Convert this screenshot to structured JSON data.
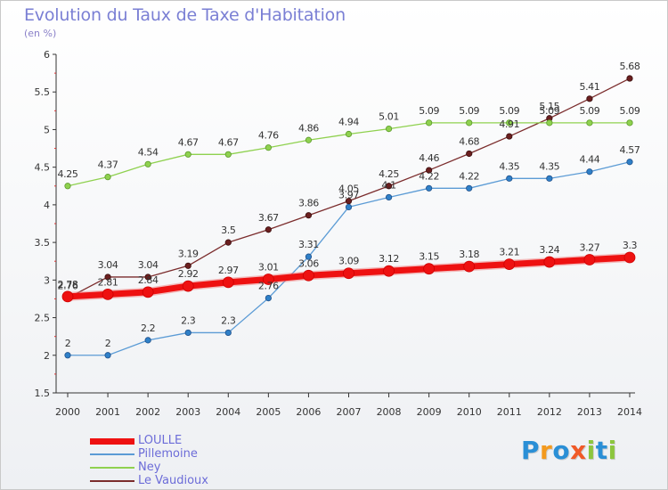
{
  "title": "Evolution du Taux de Taxe d'Habitation",
  "ylabel": "(en %)",
  "brand": {
    "text": "Proxiti",
    "letters": [
      {
        "ch": "P",
        "color": "#2a8fd6"
      },
      {
        "ch": "r",
        "color": "#f39a1e"
      },
      {
        "ch": "o",
        "color": "#2a8fd6"
      },
      {
        "ch": "x",
        "color": "#f05a28"
      },
      {
        "ch": "i",
        "color": "#8cc63e"
      },
      {
        "ch": "t",
        "color": "#2a8fd6"
      },
      {
        "ch": "i",
        "color": "#8cc63e"
      }
    ]
  },
  "chart_data": {
    "type": "line",
    "title": "Evolution du Taux de Taxe d'Habitation",
    "ylabel": "(en %)",
    "xlabel": "",
    "x": [
      "2000",
      "2001",
      "2002",
      "2003",
      "2004",
      "2005",
      "2006",
      "2007",
      "2008",
      "2009",
      "2010",
      "2011",
      "2012",
      "2013",
      "2014"
    ],
    "ylim": [
      1.5,
      6
    ],
    "yticks": [
      "1.5",
      "2",
      "2.5",
      "3",
      "3.5",
      "4",
      "4.5",
      "5",
      "5.5",
      "6"
    ],
    "grid": false,
    "legend_position": "bottom-left",
    "series": [
      {
        "name": "LOULLE",
        "color": "#ee1111",
        "values": [
          2.78,
          2.81,
          2.84,
          2.92,
          2.97,
          3.01,
          3.06,
          3.09,
          3.12,
          3.15,
          3.18,
          3.21,
          3.24,
          3.27,
          3.3
        ],
        "labels": [
          "2.78",
          "2.81",
          "2.84",
          "2.92",
          "2.97",
          "3.01",
          "3.06",
          "3.09",
          "3.12",
          "3.15",
          "3.18",
          "3.21",
          "3.24",
          "3.27",
          "3.3"
        ]
      },
      {
        "name": "Pillemoine",
        "color": "#5b9bd5",
        "values": [
          2,
          2,
          2.2,
          2.3,
          2.3,
          2.76,
          3.31,
          3.97,
          4.1,
          4.22,
          4.22,
          4.35,
          4.35,
          4.44,
          4.57
        ],
        "labels": [
          "2",
          "2",
          "2.2",
          "2.3",
          "2.3",
          "2.76",
          "3.31",
          "3.97",
          "4.1",
          "4.22",
          "4.22",
          "4.35",
          "4.35",
          "4.44",
          "4.57"
        ]
      },
      {
        "name": "Ney",
        "color": "#8fd14f",
        "values": [
          4.25,
          4.37,
          4.54,
          4.67,
          4.67,
          4.76,
          4.86,
          4.94,
          5.01,
          5.09,
          5.09,
          5.09,
          5.09,
          5.09,
          5.09
        ],
        "labels": [
          "4.25",
          "4.37",
          "4.54",
          "4.67",
          "4.67",
          "4.76",
          "4.86",
          "4.94",
          "5.01",
          "5.09",
          "5.09",
          "5.09",
          "5.09",
          "5.09",
          "5.09"
        ]
      },
      {
        "name": "Le Vaudioux",
        "color": "#7b2c2c",
        "values": [
          2.76,
          3.04,
          3.04,
          3.19,
          3.5,
          3.67,
          3.86,
          4.05,
          4.25,
          4.46,
          4.68,
          4.91,
          5.15,
          5.41,
          5.68
        ],
        "labels": [
          "2.76",
          "3.04",
          "3.04",
          "3.19",
          "3.5",
          "3.67",
          "3.86",
          "4.05",
          "4.25",
          "4.46",
          "4.68",
          "4.91",
          "5.15",
          "5.41",
          "5.68"
        ]
      }
    ]
  }
}
